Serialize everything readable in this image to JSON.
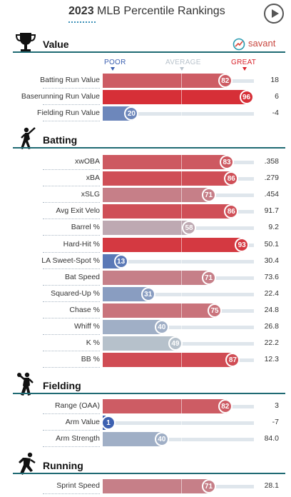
{
  "header": {
    "year": "2023",
    "title": "MLB Percentile Rankings"
  },
  "brand": {
    "name": "savant"
  },
  "scale": {
    "poor": "POOR",
    "average": "AVERAGE",
    "great": "GREAT"
  },
  "colors": {
    "poor": "#3a5fb0",
    "average": "#b9c3cc",
    "great": "#d8222a",
    "section_rule": "#1f6a73",
    "track": "#dfe6ec"
  },
  "sections": [
    {
      "title": "Value",
      "icon": "trophy-icon",
      "rows": [
        {
          "label": "Batting Run Value",
          "percentile": 82,
          "value": "18"
        },
        {
          "label": "Baserunning Run Value",
          "percentile": 96,
          "value": "6"
        },
        {
          "label": "Fielding Run Value",
          "percentile": 20,
          "value": "-4"
        }
      ]
    },
    {
      "title": "Batting",
      "icon": "batter-icon",
      "rows": [
        {
          "label": "xwOBA",
          "percentile": 83,
          "value": ".358"
        },
        {
          "label": "xBA",
          "percentile": 86,
          "value": ".279"
        },
        {
          "label": "xSLG",
          "percentile": 71,
          "value": ".454"
        },
        {
          "label": "Avg Exit Velo",
          "percentile": 86,
          "value": "91.7"
        },
        {
          "label": "Barrel %",
          "percentile": 58,
          "value": "9.2"
        },
        {
          "label": "Hard-Hit %",
          "percentile": 93,
          "value": "50.1"
        },
        {
          "label": "LA Sweet-Spot %",
          "percentile": 13,
          "value": "30.4"
        },
        {
          "label": "Bat Speed",
          "percentile": 71,
          "value": "73.6"
        },
        {
          "label": "Squared-Up %",
          "percentile": 31,
          "value": "22.4"
        },
        {
          "label": "Chase %",
          "percentile": 75,
          "value": "24.8"
        },
        {
          "label": "Whiff %",
          "percentile": 40,
          "value": "26.8"
        },
        {
          "label": "K %",
          "percentile": 49,
          "value": "22.2"
        },
        {
          "label": "BB %",
          "percentile": 87,
          "value": "12.3"
        }
      ]
    },
    {
      "title": "Fielding",
      "icon": "fielder-icon",
      "rows": [
        {
          "label": "Range (OAA)",
          "percentile": 82,
          "value": "3"
        },
        {
          "label": "Arm Value",
          "percentile": 1,
          "value": "-7"
        },
        {
          "label": "Arm Strength",
          "percentile": 40,
          "value": "84.0"
        }
      ]
    },
    {
      "title": "Running",
      "icon": "runner-icon",
      "rows": [
        {
          "label": "Sprint Speed",
          "percentile": 71,
          "value": "28.1"
        }
      ]
    }
  ]
}
